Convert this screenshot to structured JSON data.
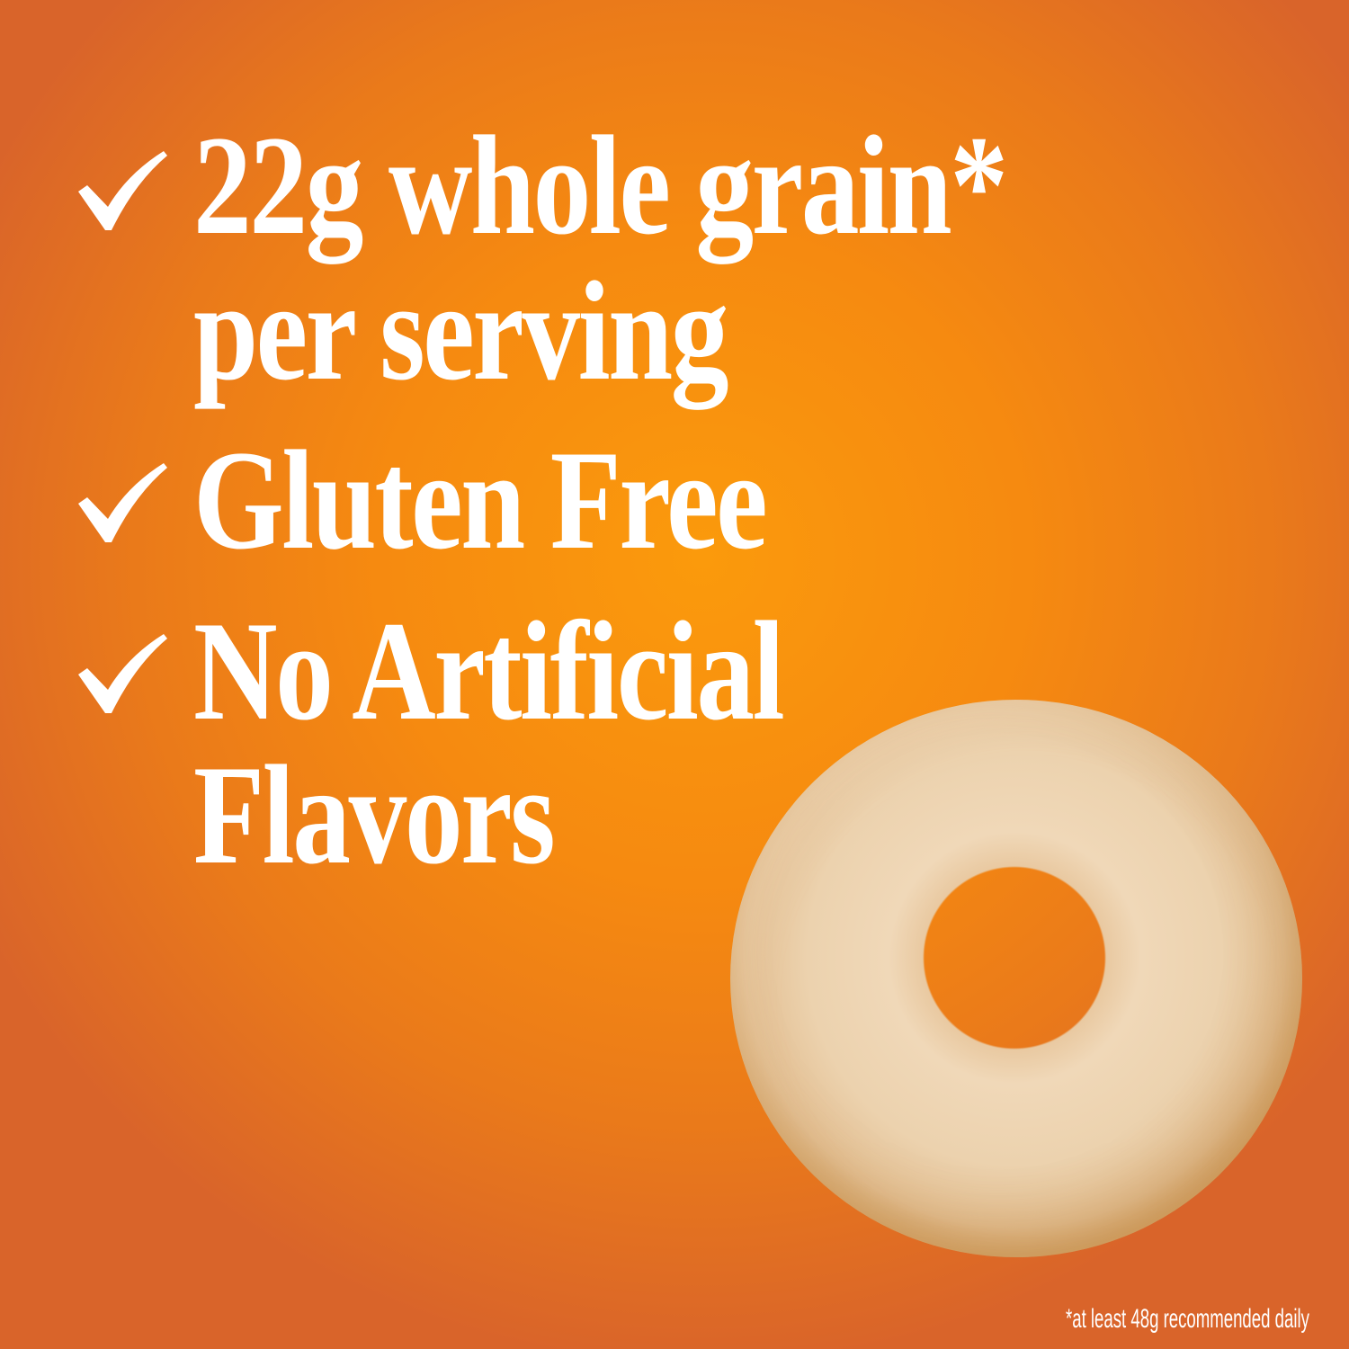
{
  "features": [
    {
      "icon": "checkmark-icon",
      "lines": [
        "22g whole grain*",
        "per serving"
      ]
    },
    {
      "icon": "checkmark-icon",
      "lines": [
        "Gluten Free"
      ]
    },
    {
      "icon": "checkmark-icon",
      "lines": [
        "No Artificial",
        "Flavors"
      ]
    }
  ],
  "footnote": "*at least 48g recommended daily",
  "colors": {
    "background": "#f68a10",
    "text": "#ffffff"
  }
}
